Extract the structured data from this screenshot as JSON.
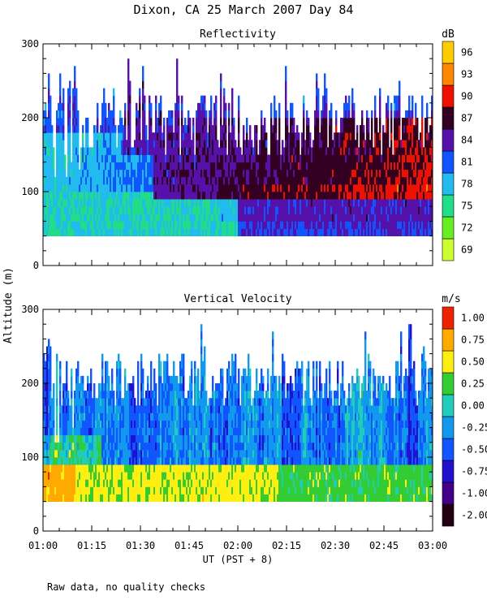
{
  "figure": {
    "title": "Dixon, CA 25 March 2007  Day  84",
    "ylabel": "Altitude (m)",
    "xlabel": "UT  (PST + 8)",
    "footnote": "Raw data, no quality checks"
  },
  "chart_data": [
    {
      "type": "heatmap",
      "title": "Reflectivity",
      "xlabel": "UT  (PST + 8)",
      "ylabel": "Altitude (m)",
      "x_ticks": [
        "01:00",
        "01:15",
        "01:30",
        "01:45",
        "02:00",
        "02:15",
        "02:30",
        "02:45",
        "03:00"
      ],
      "y_ticks": [
        0,
        100,
        200,
        300
      ],
      "xlim": [
        "01:00",
        "03:00"
      ],
      "ylim": [
        0,
        300
      ],
      "colorbar": {
        "unit": "dB",
        "ticks": [
          "69",
          "72",
          "75",
          "78",
          "81",
          "84",
          "87",
          "90",
          "93",
          "96"
        ],
        "colors": [
          "#ccff33",
          "#66ee22",
          "#22dd88",
          "#22bbee",
          "#1155ff",
          "#5511aa",
          "#330022",
          "#ee1100",
          "#ff8800",
          "#ffcc00"
        ]
      },
      "data_rows_altitude_range": [
        40,
        300
      ],
      "dominant": [
        {
          "altitude": "40-100",
          "time": "01:00-02:00",
          "value": 78
        },
        {
          "altitude": "100-180",
          "time": "01:00-01:30",
          "value": 78
        },
        {
          "altitude": "40-100",
          "time": "02:00-03:00",
          "value": 84
        },
        {
          "altitude": "90-200",
          "time": "01:30-03:00",
          "value": 90
        },
        {
          "altitude": "150-250",
          "time": "01:00-03:00",
          "value": 84
        }
      ]
    },
    {
      "type": "heatmap",
      "title": "Vertical Velocity",
      "xlabel": "UT  (PST + 8)",
      "ylabel": "Altitude (m)",
      "x_ticks": [
        "01:00",
        "01:15",
        "01:30",
        "01:45",
        "02:00",
        "02:15",
        "02:30",
        "02:45",
        "03:00"
      ],
      "y_ticks": [
        0,
        100,
        200,
        300
      ],
      "xlim": [
        "01:00",
        "03:00"
      ],
      "ylim": [
        0,
        300
      ],
      "colorbar": {
        "unit": "m/s",
        "ticks": [
          "-2.00",
          "-1.00",
          "-0.75",
          "-0.50",
          "-0.25",
          "0.00",
          "0.25",
          "0.50",
          "0.75",
          "1.00"
        ],
        "colors": [
          "#220011",
          "#440088",
          "#2211cc",
          "#1155ff",
          "#1199ee",
          "#22ccbb",
          "#33cc33",
          "#ffee11",
          "#ffaa00",
          "#ee2200"
        ]
      },
      "data_rows_altitude_range": [
        40,
        300
      ],
      "dominant": [
        {
          "altitude": "40-100",
          "time": "01:00-01:10",
          "value": 0.75
        },
        {
          "altitude": "40-80",
          "time": "01:10-02:20",
          "value": 0.5
        },
        {
          "altitude": "80-240",
          "time": "01:00-03:00",
          "value": -0.25
        }
      ]
    }
  ]
}
